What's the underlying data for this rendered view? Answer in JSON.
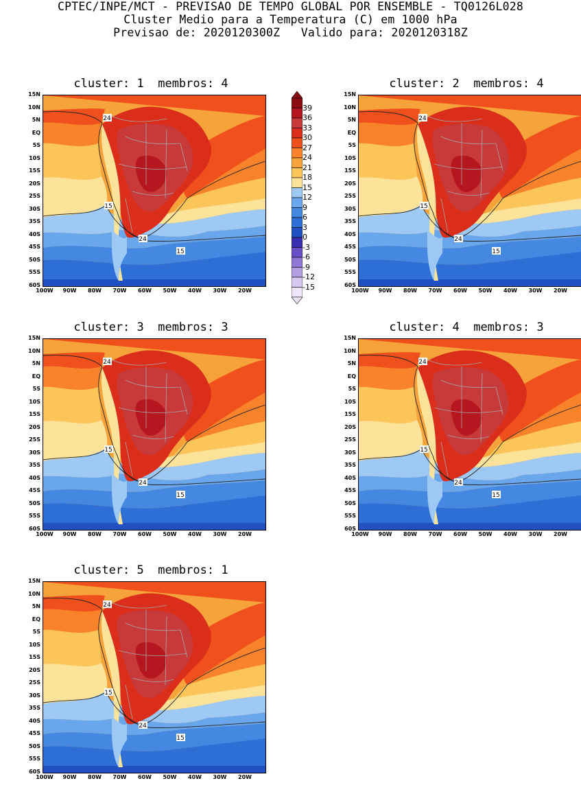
{
  "header": {
    "line1": "CPTEC/INPE/MCT - PREVISAO DE TEMPO GLOBAL POR ENSEMBLE - TQ0126L028",
    "line2": "Cluster Medio para a Temperatura (C) em 1000 hPa",
    "line3": "Previsao de: 2020120300Z   Valido para: 2020120318Z"
  },
  "panels": [
    {
      "title": "cluster: 1  membros: 4"
    },
    {
      "title": "cluster: 2  membros: 4"
    },
    {
      "title": "cluster: 3  membros: 3"
    },
    {
      "title": "cluster: 4  membros: 3"
    },
    {
      "title": "cluster: 5  membros: 1"
    }
  ],
  "lat_labels": [
    "15N",
    "10N",
    "5N",
    "EQ",
    "5S",
    "10S",
    "15S",
    "20S",
    "25S",
    "30S",
    "35S",
    "40S",
    "45S",
    "50S",
    "55S",
    "60S"
  ],
  "lon_labels": [
    "100W",
    "90W",
    "80W",
    "70W",
    "60W",
    "50W",
    "40W",
    "30W",
    "20W"
  ],
  "contour_labels": [
    "24",
    "15",
    "24",
    "15"
  ],
  "colorbar": {
    "levels": [
      "39",
      "36",
      "33",
      "30",
      "27",
      "24",
      "21",
      "18",
      "15",
      "12",
      "9",
      "6",
      "3",
      "0",
      "-3",
      "-6",
      "-9",
      "-12",
      "-15"
    ],
    "colors": [
      "#8c0c14",
      "#b5161f",
      "#c83a3a",
      "#da2d1a",
      "#f0501c",
      "#f9832a",
      "#f5a33a",
      "#fcc55a",
      "#fde39a",
      "#9dc9f4",
      "#6aa6ec",
      "#4488e2",
      "#2e6fd6",
      "#2050c2",
      "#3a2fb0",
      "#6a4fc8",
      "#9176d6",
      "#b49ee2",
      "#d6c8f0",
      "#eee6fa"
    ]
  },
  "colors": {
    "hot": "#c8161f",
    "warm": "#da2d1a",
    "orange": "#f0501c",
    "amber": "#f9832a",
    "gold": "#f5a33a",
    "yellow": "#fcc55a",
    "pale": "#fde39a",
    "lightblue": "#9dc9f4",
    "blue": "#6aa6ec",
    "midblue": "#4488e2",
    "deepblue": "#2e6fd6",
    "navy": "#2050c2"
  }
}
